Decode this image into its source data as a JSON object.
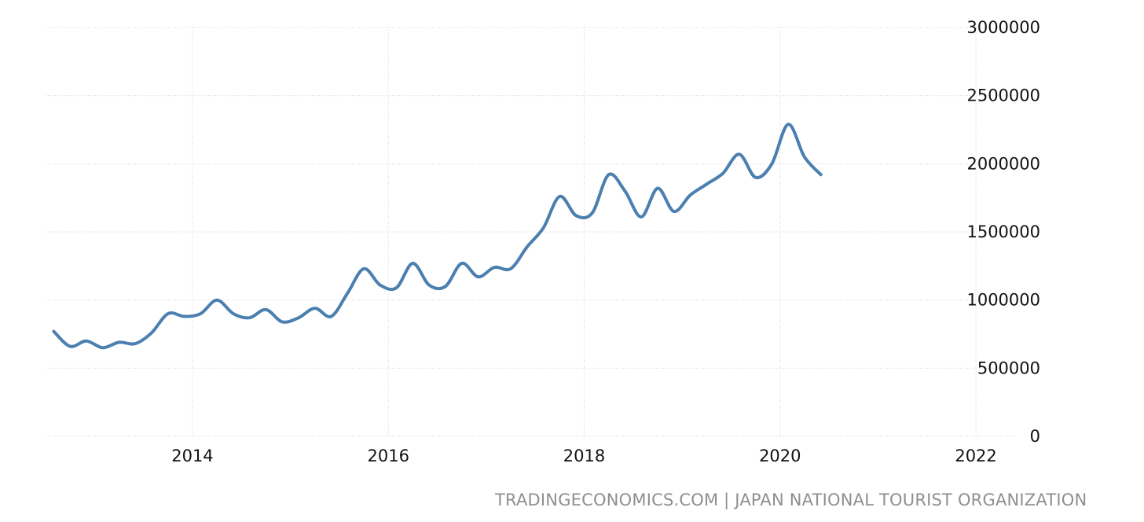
{
  "chart_data": {
    "type": "line",
    "title": "",
    "xlabel": "",
    "ylabel": "",
    "xlim": [
      "2012-07",
      "2022-06"
    ],
    "ylim": [
      0,
      3000000
    ],
    "x_ticks": [
      "2014",
      "2016",
      "2018",
      "2020",
      "2022"
    ],
    "y_ticks": [
      0,
      500000,
      1000000,
      1500000,
      2000000,
      2500000,
      3000000
    ],
    "grid": true,
    "legend": "none",
    "y_axis_position": "right",
    "line_color": "#4a7fb0",
    "series": [
      {
        "name": "",
        "points": [
          [
            "2012-08",
            770000
          ],
          [
            "2012-10",
            660000
          ],
          [
            "2012-12",
            700000
          ],
          [
            "2013-02",
            650000
          ],
          [
            "2013-04",
            690000
          ],
          [
            "2013-06",
            680000
          ],
          [
            "2013-08",
            760000
          ],
          [
            "2013-10",
            900000
          ],
          [
            "2013-12",
            880000
          ],
          [
            "2014-02",
            900000
          ],
          [
            "2014-04",
            1000000
          ],
          [
            "2014-06",
            900000
          ],
          [
            "2014-08",
            870000
          ],
          [
            "2014-10",
            930000
          ],
          [
            "2014-12",
            840000
          ],
          [
            "2015-02",
            870000
          ],
          [
            "2015-04",
            940000
          ],
          [
            "2015-06",
            880000
          ],
          [
            "2015-08",
            1050000
          ],
          [
            "2015-10",
            1230000
          ],
          [
            "2015-12",
            1110000
          ],
          [
            "2016-02",
            1090000
          ],
          [
            "2016-04",
            1270000
          ],
          [
            "2016-06",
            1110000
          ],
          [
            "2016-08",
            1100000
          ],
          [
            "2016-10",
            1270000
          ],
          [
            "2016-12",
            1170000
          ],
          [
            "2017-02",
            1240000
          ],
          [
            "2017-04",
            1230000
          ],
          [
            "2017-06",
            1390000
          ],
          [
            "2017-08",
            1530000
          ],
          [
            "2017-10",
            1760000
          ],
          [
            "2017-12",
            1620000
          ],
          [
            "2018-02",
            1640000
          ],
          [
            "2018-04",
            1920000
          ],
          [
            "2018-06",
            1800000
          ],
          [
            "2018-08",
            1610000
          ],
          [
            "2018-10",
            1820000
          ],
          [
            "2018-12",
            1650000
          ],
          [
            "2019-02",
            1770000
          ],
          [
            "2019-04",
            1850000
          ],
          [
            "2019-06",
            1930000
          ],
          [
            "2019-08",
            2070000
          ],
          [
            "2019-10",
            1900000
          ],
          [
            "2019-12",
            2000000
          ],
          [
            "2020-02",
            2290000
          ],
          [
            "2020-04",
            2050000
          ],
          [
            "2020-06",
            1920000
          ]
        ]
      }
    ]
  },
  "source_text": "TRADINGECONOMICS.COM | JAPAN NATIONAL TOURIST ORGANIZATION"
}
